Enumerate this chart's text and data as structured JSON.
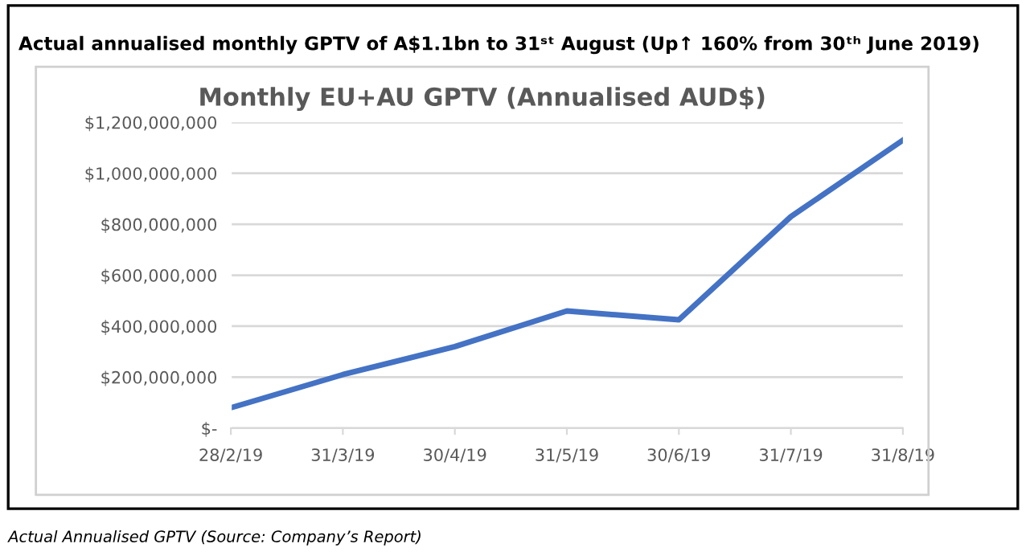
{
  "chart_data": {
    "type": "line",
    "title": "Actual annualised monthly GPTV of A$1.1bn to 31ˢᵗ August (Up↑ 160% from 30ᵗʰ June 2019)",
    "subtitle": "Monthly EU+AU GPTV (Annualised AUD$)",
    "annotations": [
      "Actual Annualised GPTV (Source: Company’s Report)"
    ],
    "categories": [
      "28/2/19",
      "31/3/19",
      "30/4/19",
      "31/5/19",
      "30/6/19",
      "31/7/19",
      "31/8/19"
    ],
    "series": [
      {
        "color": "#4472c4",
        "values": [
          80000000,
          210000000,
          320000000,
          460000000,
          425000000,
          830000000,
          1130000000
        ]
      }
    ],
    "ylim": [
      0,
      1200000000
    ],
    "yticks": [
      {
        "value": 0,
        "label": "$-"
      },
      {
        "value": 200000000,
        "label": "$200,000,000"
      },
      {
        "value": 400000000,
        "label": "$400,000,000"
      },
      {
        "value": 600000000,
        "label": "$600,000,000"
      },
      {
        "value": 800000000,
        "label": "$800,000,000"
      },
      {
        "value": 1000000000,
        "label": "$1,000,000,000"
      },
      {
        "value": 1200000000,
        "label": "$1,200,000,000"
      }
    ],
    "grid": "y",
    "legend": false,
    "marker": "none",
    "line_style": "solid"
  }
}
